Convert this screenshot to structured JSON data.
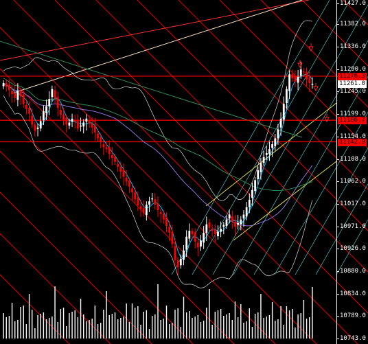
{
  "chart_data": {
    "type": "candlestick",
    "title": "",
    "ylim": [
      10743.0,
      11427.0
    ],
    "y_ticks": [
      "11427.0",
      "11382.0",
      "11336.0",
      "11290.0",
      "11245.0",
      "11199.0",
      "11154.0",
      "11108.0",
      "11062.0",
      "11017.0",
      "10971.0",
      "10926.0",
      "10880.0",
      "10834.0",
      "10789.0",
      "10743.0"
    ],
    "current_price": {
      "label": "11261.0",
      "value": 11261.0
    },
    "level_labels": [
      {
        "label": "11276.3",
        "value": 11276.3
      },
      {
        "label": "11186.7",
        "value": 11186.7
      },
      {
        "label": "11142.9",
        "value": 11142.9
      }
    ],
    "colors": {
      "up": "#ffffff",
      "down": "#ff0000",
      "level": "#ff0000",
      "ma_fast": "#00bfff",
      "band": "#c0c0c0",
      "ma_slow": "#9370db",
      "ma_long": "#2e8b57"
    },
    "close": [
      11262,
      11255,
      11248,
      11240,
      11232,
      11246,
      11235,
      11220,
      11210,
      11200,
      11178,
      11165,
      11172,
      11185,
      11205,
      11215,
      11230,
      11250,
      11232,
      11212,
      11198,
      11188,
      11178,
      11182,
      11190,
      11185,
      11170,
      11176,
      11182,
      11190,
      11180,
      11172,
      11162,
      11150,
      11142,
      11132,
      11128,
      11118,
      11110,
      11102,
      11092,
      11082,
      11072,
      11062,
      11052,
      11040,
      11026,
      11014,
      11006,
      10998,
      11015,
      11022,
      11028,
      11015,
      11004,
      10996,
      10985,
      10972,
      10958,
      10935,
      10902,
      10888,
      10905,
      10922,
      10950,
      10962,
      10955,
      10940,
      10928,
      10942,
      10958,
      10975,
      10968,
      10962,
      10955,
      10960,
      10966,
      10974,
      10985,
      10995,
      10980,
      10970,
      10978,
      10985,
      10995,
      11010,
      11025,
      11045,
      11065,
      11085,
      11100,
      11112,
      11120,
      11128,
      11138,
      11150,
      11168,
      11190,
      11220,
      11250,
      11280,
      11272,
      11265,
      11275,
      11290,
      11285,
      11270,
      11262,
      11261
    ]
  }
}
